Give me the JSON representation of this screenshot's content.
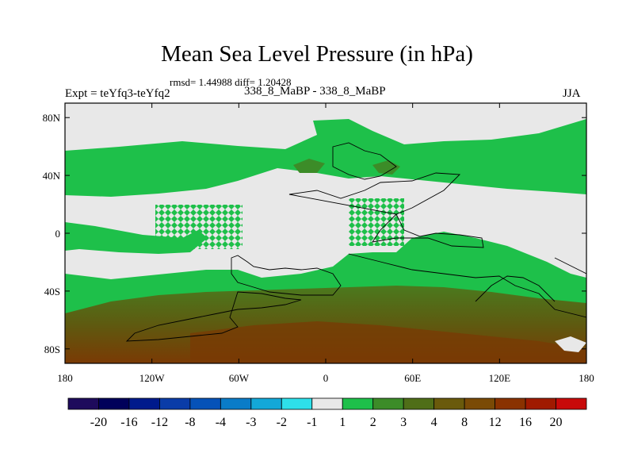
{
  "title": "Mean Sea Level Pressure (in hPa)",
  "stats_line": "rmsd= 1.44988 diff= 1.20428",
  "experiment_label": "Expt = teYfq3-teYfq2",
  "case_label": "338_8_MaBP - 338_8_MaBP",
  "season_label": "JJA",
  "axes": {
    "lat_ticks": [
      {
        "value": 80,
        "label": "80N"
      },
      {
        "value": 40,
        "label": "40N"
      },
      {
        "value": 0,
        "label": "0"
      },
      {
        "value": -40,
        "label": "40S"
      },
      {
        "value": -80,
        "label": "80S"
      }
    ],
    "lon_ticks": [
      {
        "value": -180,
        "label": "180"
      },
      {
        "value": -120,
        "label": "120W"
      },
      {
        "value": -60,
        "label": "60W"
      },
      {
        "value": 0,
        "label": "0"
      },
      {
        "value": 60,
        "label": "60E"
      },
      {
        "value": 120,
        "label": "120E"
      },
      {
        "value": 180,
        "label": "180"
      }
    ],
    "lon_range": [
      -180,
      180
    ],
    "lat_range": [
      -90,
      90
    ]
  },
  "colorbar": {
    "colors": [
      "#1e0b5c",
      "#00005a",
      "#001a8c",
      "#0a3ca8",
      "#0652b8",
      "#0a7cc8",
      "#13a8d8",
      "#2ee0ea",
      "#e8e8e8",
      "#1ec04a",
      "#3c8c28",
      "#4f6e18",
      "#6a5a0c",
      "#7a4a06",
      "#8a3200",
      "#a01a00",
      "#c80a0a"
    ],
    "labels": [
      "-20",
      "-16",
      "-12",
      "-8",
      "-4",
      "-3",
      "-2",
      "-1",
      "1",
      "2",
      "3",
      "4",
      "8",
      "12",
      "16",
      "20"
    ]
  }
}
